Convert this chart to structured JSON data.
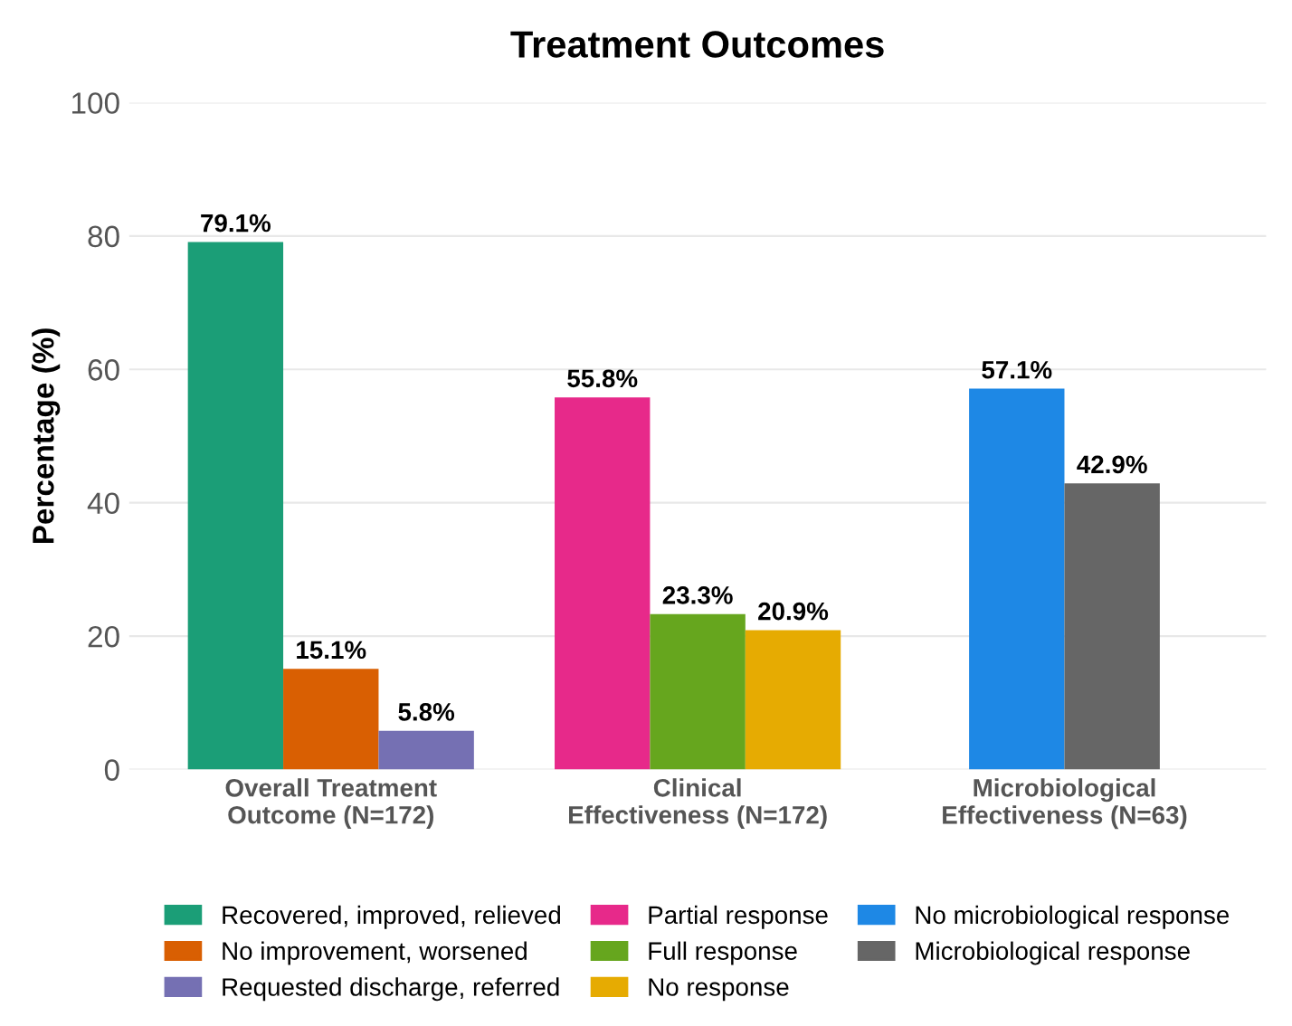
{
  "chart_data": {
    "type": "bar",
    "title": "Treatment Outcomes",
    "ylabel": "Percentage (%)",
    "categories": [
      "Overall Treatment\nOutcome (N=172)",
      "Clinical\nEffectiveness (N=172)",
      "Microbiological\nEffectiveness (N=63)"
    ],
    "series": [
      {
        "name": "Recovered, improved, relieved",
        "color": "#1b9e77",
        "values": [
          79.1,
          null,
          null
        ],
        "value_labels": [
          "79.1%",
          null,
          null
        ]
      },
      {
        "name": "No improvement, worsened",
        "color": "#d95f02",
        "values": [
          15.1,
          null,
          null
        ],
        "value_labels": [
          "15.1%",
          null,
          null
        ]
      },
      {
        "name": "Requested discharge, referred",
        "color": "#7570b3",
        "values": [
          5.8,
          null,
          null
        ],
        "value_labels": [
          "5.8%",
          null,
          null
        ]
      },
      {
        "name": "Partial response",
        "color": "#e7298a",
        "values": [
          null,
          55.8,
          null
        ],
        "value_labels": [
          null,
          "55.8%",
          null
        ]
      },
      {
        "name": "Full response",
        "color": "#66a61e",
        "values": [
          null,
          23.3,
          null
        ],
        "value_labels": [
          null,
          "23.3%",
          null
        ]
      },
      {
        "name": "No response",
        "color": "#e6ab02",
        "values": [
          null,
          20.9,
          null
        ],
        "value_labels": [
          null,
          "20.9%",
          null
        ]
      },
      {
        "name": "No microbiological response",
        "color": "#1e88e5",
        "values": [
          null,
          null,
          57.1
        ],
        "value_labels": [
          null,
          null,
          "57.1%"
        ]
      },
      {
        "name": "Microbiological response",
        "color": "#666666",
        "values": [
          null,
          null,
          42.9
        ],
        "value_labels": [
          null,
          null,
          "42.9%"
        ]
      }
    ],
    "ylim": [
      0,
      100
    ],
    "yticks": [
      0,
      20,
      40,
      60,
      80,
      100
    ],
    "grid": "y",
    "legend": "bottom"
  }
}
